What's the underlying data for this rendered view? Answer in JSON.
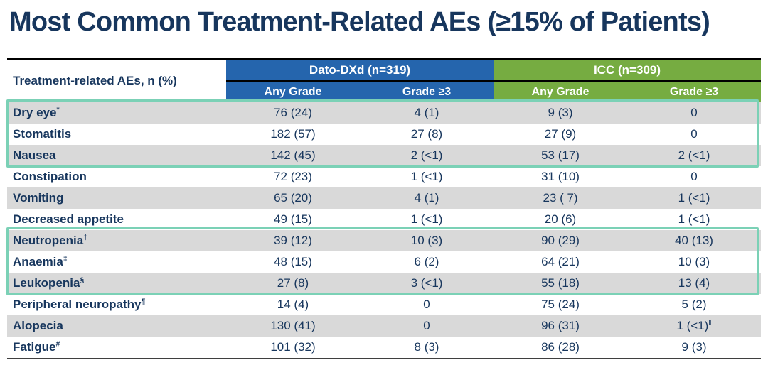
{
  "title": "Most Common Treatment-Related AEs (≥15% of Patients)",
  "table": {
    "row_header": "Treatment-related AEs, n (%)",
    "groups": [
      {
        "label": "Dato-DXd (n=319)",
        "color": "#2565ad"
      },
      {
        "label": "ICC (n=309)",
        "color": "#76ac41"
      }
    ],
    "subheaders": [
      "Any Grade",
      "Grade ≥3",
      "Any Grade",
      "Grade ≥3"
    ],
    "rows": [
      {
        "label": "Dry eye",
        "sup": "*",
        "cells": [
          "76 (24)",
          "4 (1)",
          "9 (3)",
          "0"
        ],
        "cell_sups": [
          "",
          "",
          "",
          ""
        ]
      },
      {
        "label": "Stomatitis",
        "sup": "",
        "cells": [
          "182 (57)",
          "27 (8)",
          "27 (9)",
          "0"
        ],
        "cell_sups": [
          "",
          "",
          "",
          ""
        ]
      },
      {
        "label": "Nausea",
        "sup": "",
        "cells": [
          "142 (45)",
          "2 (<1)",
          "53 (17)",
          "2 (<1)"
        ],
        "cell_sups": [
          "",
          "",
          "",
          ""
        ]
      },
      {
        "label": "Constipation",
        "sup": "",
        "cells": [
          "72 (23)",
          "1 (<1)",
          "31 (10)",
          "0"
        ],
        "cell_sups": [
          "",
          "",
          "",
          ""
        ]
      },
      {
        "label": "Vomiting",
        "sup": "",
        "cells": [
          "65 (20)",
          "4 (1)",
          "23 ( 7)",
          "1 (<1)"
        ],
        "cell_sups": [
          "",
          "",
          "",
          ""
        ]
      },
      {
        "label": "Decreased appetite",
        "sup": "",
        "cells": [
          "49 (15)",
          "1 (<1)",
          "20 (6)",
          "1 (<1)"
        ],
        "cell_sups": [
          "",
          "",
          "",
          ""
        ]
      },
      {
        "label": "Neutropenia",
        "sup": "†",
        "cells": [
          "39 (12)",
          "10 (3)",
          "90 (29)",
          "40 (13)"
        ],
        "cell_sups": [
          "",
          "",
          "",
          ""
        ]
      },
      {
        "label": "Anaemia",
        "sup": "‡",
        "cells": [
          "48 (15)",
          "6 (2)",
          "64 (21)",
          "10 (3)"
        ],
        "cell_sups": [
          "",
          "",
          "",
          ""
        ]
      },
      {
        "label": "Leukopenia",
        "sup": "§",
        "cells": [
          "27 (8)",
          "3 (<1)",
          "55 (18)",
          "13 (4)"
        ],
        "cell_sups": [
          "",
          "",
          "",
          ""
        ]
      },
      {
        "label": "Peripheral neuropathy",
        "sup": "¶",
        "cells": [
          "14 (4)",
          "0",
          "75 (24)",
          "5 (2)"
        ],
        "cell_sups": [
          "",
          "",
          "",
          ""
        ]
      },
      {
        "label": "Alopecia",
        "sup": "",
        "cells": [
          "130 (41)",
          "0",
          "96 (31)",
          "1 (<1)"
        ],
        "cell_sups": [
          "",
          "",
          "",
          "‖"
        ]
      },
      {
        "label": "Fatigue",
        "sup": "#",
        "cells": [
          "101 (32)",
          "8 (3)",
          "86 (28)",
          "9 (3)"
        ],
        "cell_sups": [
          "",
          "",
          "",
          ""
        ]
      }
    ],
    "highlight_groups": [
      [
        0,
        2
      ],
      [
        6,
        8
      ]
    ],
    "colors": {
      "navy_text": "#17365d",
      "dato_blue": "#2565ad",
      "icc_green": "#76ac41",
      "shaded_row_gray": "#d9d9d9",
      "highlight_teal": "#7bd1b6"
    }
  }
}
